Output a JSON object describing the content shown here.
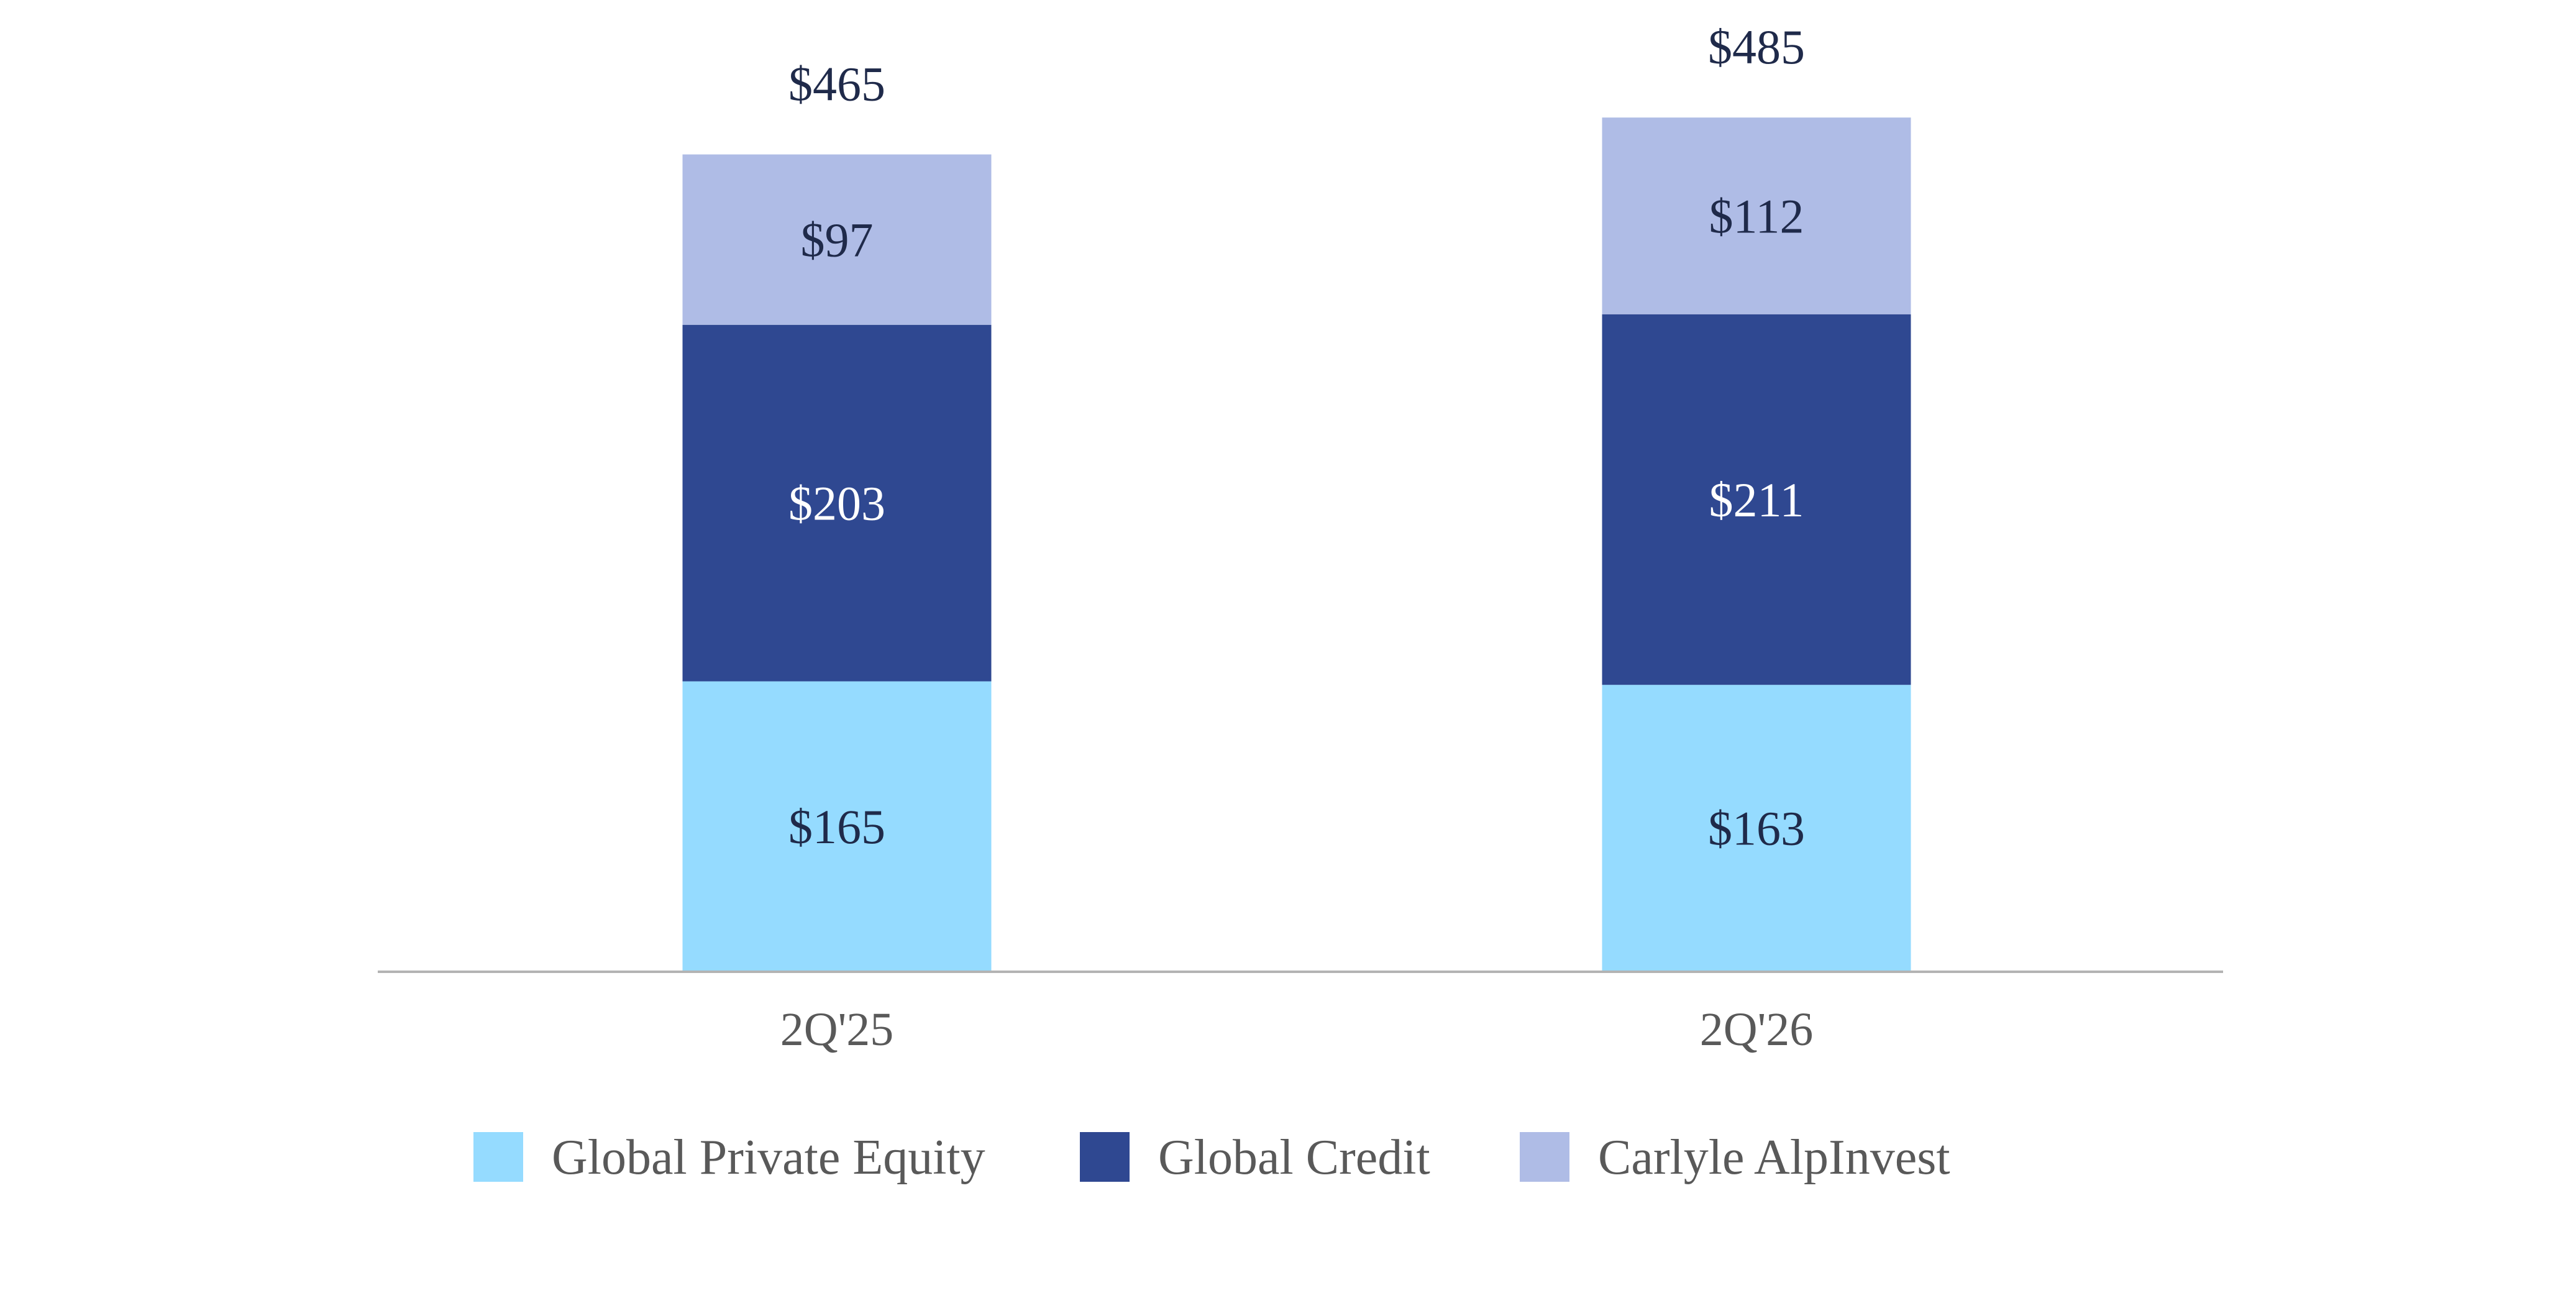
{
  "chart_data": {
    "type": "bar",
    "stacked": true,
    "categories": [
      "2Q'25",
      "2Q'26"
    ],
    "series": [
      {
        "name": "Global Private Equity",
        "values": [
          165,
          163
        ],
        "labels": [
          "$165",
          "$163"
        ],
        "color": "#95dbff",
        "label_color": "#1f2a4a"
      },
      {
        "name": "Global Credit",
        "values": [
          203,
          211
        ],
        "labels": [
          "$203",
          "$211"
        ],
        "color": "#2f4891",
        "label_color": "#ffffff"
      },
      {
        "name": "Carlyle AlpInvest",
        "values": [
          97,
          112
        ],
        "labels": [
          "$97",
          "$112"
        ],
        "color": "#afbce6",
        "label_color": "#1f2a4a"
      }
    ],
    "totals": [
      465,
      485
    ],
    "total_labels": [
      "$465",
      "$485"
    ],
    "ylim": [
      0,
      485
    ],
    "grid": false,
    "legend_position": "bottom",
    "axis_color": "#b3b3b3"
  }
}
